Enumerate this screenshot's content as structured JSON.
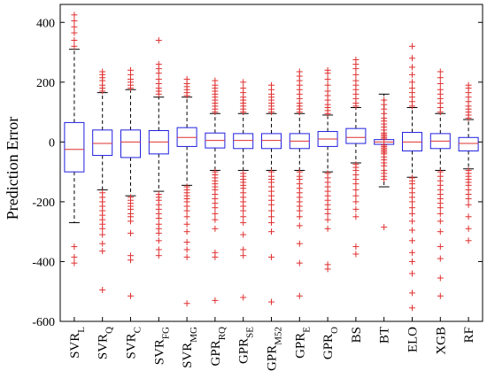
{
  "chart_data": {
    "type": "box",
    "ylabel": "Prediction Error",
    "ylim": [
      -600,
      460
    ],
    "yticks": [
      -600,
      -400,
      -200,
      0,
      200,
      400
    ],
    "colors": {
      "box": "#2020e0",
      "median": "#e03030",
      "whisker": "#000000",
      "outlier": "#e03030"
    },
    "categories": [
      {
        "main": "SVR",
        "sub": "L"
      },
      {
        "main": "SVR",
        "sub": "Q"
      },
      {
        "main": "SVR",
        "sub": "C"
      },
      {
        "main": "SVR",
        "sub": "FG"
      },
      {
        "main": "SVR",
        "sub": "MG"
      },
      {
        "main": "GPR",
        "sub": "RQ"
      },
      {
        "main": "GPR",
        "sub": "SE"
      },
      {
        "main": "GPR",
        "sub": "M52"
      },
      {
        "main": "GPR",
        "sub": "E"
      },
      {
        "main": "GPR",
        "sub": "O"
      },
      {
        "main": "BS",
        "sub": ""
      },
      {
        "main": "BT",
        "sub": ""
      },
      {
        "main": "ELO",
        "sub": ""
      },
      {
        "main": "XGB",
        "sub": ""
      },
      {
        "main": "RF",
        "sub": ""
      }
    ],
    "boxes": [
      {
        "q1": -100,
        "median": -25,
        "q3": 65,
        "lower": -270,
        "upper": 310,
        "outlier_low": [
          -350,
          -385,
          -405
        ],
        "outlier_high": [
          320,
          340,
          365,
          385,
          405,
          425
        ]
      },
      {
        "q1": -45,
        "median": -5,
        "q3": 40,
        "lower": -160,
        "upper": 165,
        "outlier_low": [
          -170,
          -185,
          -200,
          -215,
          -230,
          -245,
          -260,
          -275,
          -290,
          -310,
          -340,
          -365,
          -495
        ],
        "outlier_high": [
          170,
          180,
          190,
          205,
          215,
          225,
          235
        ]
      },
      {
        "q1": -52,
        "median": 0,
        "q3": 40,
        "lower": -180,
        "upper": 175,
        "outlier_low": [
          -185,
          -195,
          -205,
          -215,
          -225,
          -240,
          -250,
          -265,
          -305,
          -380,
          -395,
          -515
        ],
        "outlier_high": [
          180,
          190,
          200,
          210,
          225,
          240
        ]
      },
      {
        "q1": -40,
        "median": 0,
        "q3": 38,
        "lower": -165,
        "upper": 150,
        "outlier_low": [
          -175,
          -185,
          -195,
          -210,
          -225,
          -240,
          -255,
          -275,
          -290,
          -305,
          -330,
          -360,
          -380
        ],
        "outlier_high": [
          160,
          170,
          180,
          195,
          210,
          230,
          245,
          260,
          340
        ]
      },
      {
        "q1": -15,
        "median": 15,
        "q3": 48,
        "lower": -145,
        "upper": 150,
        "outlier_low": [
          -150,
          -160,
          -170,
          -180,
          -190,
          -200,
          -215,
          -230,
          -250,
          -275,
          -300,
          -335,
          -360,
          -385,
          -540
        ],
        "outlier_high": [
          155,
          165,
          175,
          185,
          195,
          210
        ]
      },
      {
        "q1": -20,
        "median": 5,
        "q3": 30,
        "lower": -95,
        "upper": 95,
        "outlier_low": [
          -100,
          -110,
          -120,
          -130,
          -140,
          -150,
          -160,
          -175,
          -190,
          -205,
          -220,
          -240,
          -260,
          -290,
          -370,
          -385,
          -530
        ],
        "outlier_high": [
          100,
          110,
          120,
          130,
          140,
          150,
          160,
          170,
          180,
          190,
          205
        ]
      },
      {
        "q1": -22,
        "median": 5,
        "q3": 28,
        "lower": -95,
        "upper": 95,
        "outlier_low": [
          -105,
          -115,
          -125,
          -135,
          -145,
          -155,
          -170,
          -185,
          -200,
          -215,
          -230,
          -250,
          -270,
          -310,
          -360,
          -380,
          -520
        ],
        "outlier_high": [
          100,
          110,
          120,
          130,
          140,
          150,
          165,
          180,
          200
        ]
      },
      {
        "q1": -22,
        "median": 5,
        "q3": 28,
        "lower": -95,
        "upper": 95,
        "outlier_low": [
          -100,
          -115,
          -125,
          -135,
          -150,
          -165,
          -180,
          -195,
          -210,
          -230,
          -250,
          -270,
          -300,
          -385,
          -535
        ],
        "outlier_high": [
          100,
          110,
          120,
          130,
          140,
          150,
          160,
          175,
          190
        ]
      },
      {
        "q1": -22,
        "median": 3,
        "q3": 28,
        "lower": -95,
        "upper": 95,
        "outlier_low": [
          -100,
          -115,
          -125,
          -140,
          -155,
          -170,
          -185,
          -200,
          -215,
          -230,
          -250,
          -280,
          -340,
          -405,
          -515
        ],
        "outlier_high": [
          100,
          110,
          120,
          130,
          145,
          160,
          175,
          190,
          205,
          220,
          235
        ]
      },
      {
        "q1": -15,
        "median": 10,
        "q3": 35,
        "lower": -100,
        "upper": 90,
        "outlier_low": [
          -105,
          -120,
          -135,
          -150,
          -165,
          -180,
          -195,
          -210,
          -225,
          -240,
          -260,
          -290,
          -410,
          -425
        ],
        "outlier_high": [
          95,
          105,
          115,
          125,
          140,
          155,
          170,
          190,
          210,
          230,
          240
        ]
      },
      {
        "q1": -5,
        "median": 15,
        "q3": 45,
        "lower": -70,
        "upper": 115,
        "outlier_low": [
          -75,
          -85,
          -95,
          -110,
          -125,
          -140,
          -160,
          -180,
          -200,
          -225,
          -250,
          -350,
          -375
        ],
        "outlier_high": [
          120,
          130,
          145,
          160,
          175,
          190,
          205,
          225,
          245,
          260,
          275
        ]
      },
      {
        "q1": -8,
        "median": 0,
        "q3": 8,
        "lower": -150,
        "upper": 160,
        "outlier_low": [
          -10,
          -15,
          -20,
          -25,
          -30,
          -35,
          -40,
          -50,
          -60,
          -70,
          -80,
          -95,
          -105,
          -115,
          -125,
          -285
        ],
        "outlier_high": [
          10,
          15,
          20,
          25,
          30,
          40,
          50,
          60,
          70,
          80,
          95,
          110,
          125,
          140
        ]
      },
      {
        "q1": -30,
        "median": 0,
        "q3": 32,
        "lower": -118,
        "upper": 115,
        "outlier_low": [
          -120,
          -130,
          -140,
          -155,
          -170,
          -185,
          -200,
          -220,
          -240,
          -265,
          -295,
          -330,
          -370,
          -400,
          -440,
          -505,
          -555
        ],
        "outlier_high": [
          120,
          135,
          150,
          165,
          180,
          200,
          225,
          250,
          280,
          320
        ]
      },
      {
        "q1": -22,
        "median": 3,
        "q3": 28,
        "lower": -95,
        "upper": 95,
        "outlier_low": [
          -100,
          -115,
          -130,
          -145,
          -160,
          -175,
          -190,
          -205,
          -220,
          -240,
          -265,
          -300,
          -350,
          -390,
          -455,
          -515
        ],
        "outlier_high": [
          100,
          115,
          130,
          145,
          160,
          175,
          195,
          215,
          235
        ]
      },
      {
        "q1": -30,
        "median": -5,
        "q3": 15,
        "lower": -90,
        "upper": 75,
        "outlier_low": [
          -95,
          -105,
          -115,
          -125,
          -135,
          -145,
          -160,
          -175,
          -190,
          -210,
          -250,
          -290,
          -330
        ],
        "outlier_high": [
          80,
          90,
          100,
          110,
          120,
          135,
          150,
          165,
          180,
          190
        ]
      }
    ]
  }
}
